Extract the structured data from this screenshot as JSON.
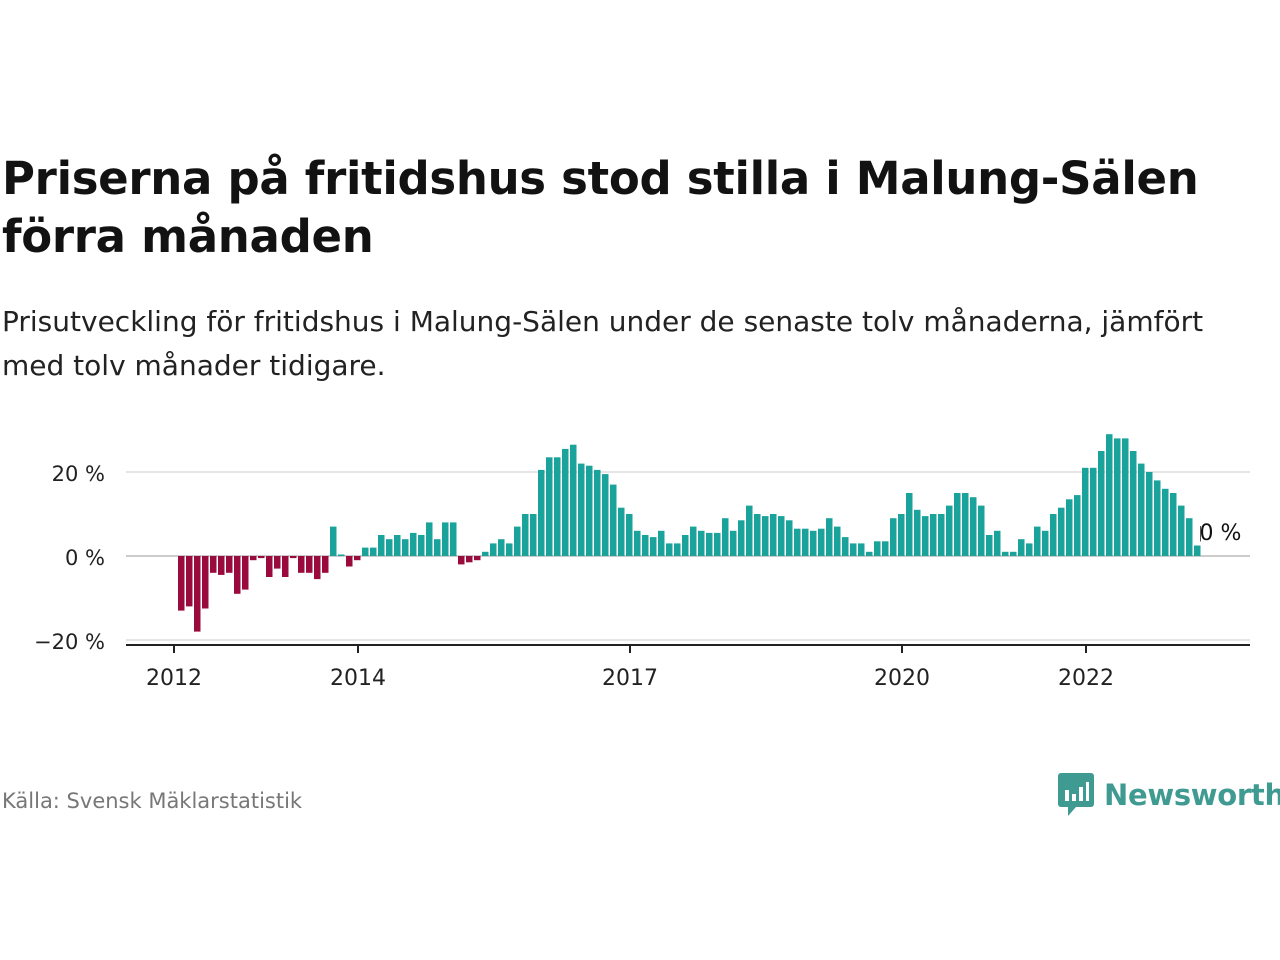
{
  "title": "Priserna på fritidshus stod stilla i Malung-Sälen förra månaden",
  "subtitle": "Prisutveckling för fritidshus i Malung-Sälen under de senaste tolv månaderna, jämfört med tolv månader tidigare.",
  "source": "Källa: Svensk Mäklarstatistik",
  "brand": {
    "name": "Newsworthy",
    "icon": "newsworthy-logo-icon",
    "color": "#3f9a92"
  },
  "colors": {
    "positive": "#1aa39b",
    "negative": "#9b0a3c",
    "grid": "#dddddd",
    "axis": "#222222"
  },
  "chart_data": {
    "type": "bar",
    "ylim": [
      -20,
      30
    ],
    "yticks": [
      -20,
      0,
      20
    ],
    "ytick_labels": [
      "−20 %",
      "0 %",
      "20 %"
    ],
    "x_start": "2012-01",
    "xticks": [
      {
        "index": 1,
        "label": "2012"
      },
      {
        "index": 24,
        "label": "2014"
      },
      {
        "index": 58,
        "label": "2017"
      },
      {
        "index": 92,
        "label": "2020"
      },
      {
        "index": 115,
        "label": "2022"
      }
    ],
    "values": [
      -13,
      -12,
      -18,
      -12.5,
      -4,
      -4.5,
      -4,
      -9,
      -8,
      -1,
      -0.5,
      -5,
      -3,
      -5,
      -0.5,
      -4,
      -4,
      -5.5,
      -4,
      7,
      0.2,
      -2.5,
      -1,
      2,
      2,
      5,
      4,
      5,
      4,
      5.5,
      5,
      8,
      4,
      8,
      8,
      -2,
      -1.5,
      -1,
      1,
      3,
      4,
      3,
      7,
      10,
      10,
      20.5,
      23.5,
      23.5,
      25.5,
      26.5,
      22,
      21.5,
      20.5,
      19.5,
      17,
      11.5,
      10,
      6,
      5,
      4.5,
      6,
      3,
      3,
      5,
      7,
      6,
      5.5,
      5.5,
      9,
      6,
      8.5,
      12,
      10,
      9.5,
      10,
      9.5,
      8.5,
      6.5,
      6.5,
      6,
      6.5,
      9,
      7,
      4.5,
      3,
      3,
      1,
      3.5,
      3.5,
      9,
      10,
      15,
      11,
      9.5,
      10,
      10,
      12,
      15,
      15,
      14,
      12,
      5,
      6,
      1,
      1,
      4,
      3,
      7,
      6,
      10,
      11.5,
      13.5,
      14.5,
      21,
      21,
      25,
      29,
      28,
      28,
      25,
      22,
      20,
      18,
      16,
      15,
      12,
      9,
      2.5
    ],
    "annotation": {
      "label": "0 %"
    }
  }
}
